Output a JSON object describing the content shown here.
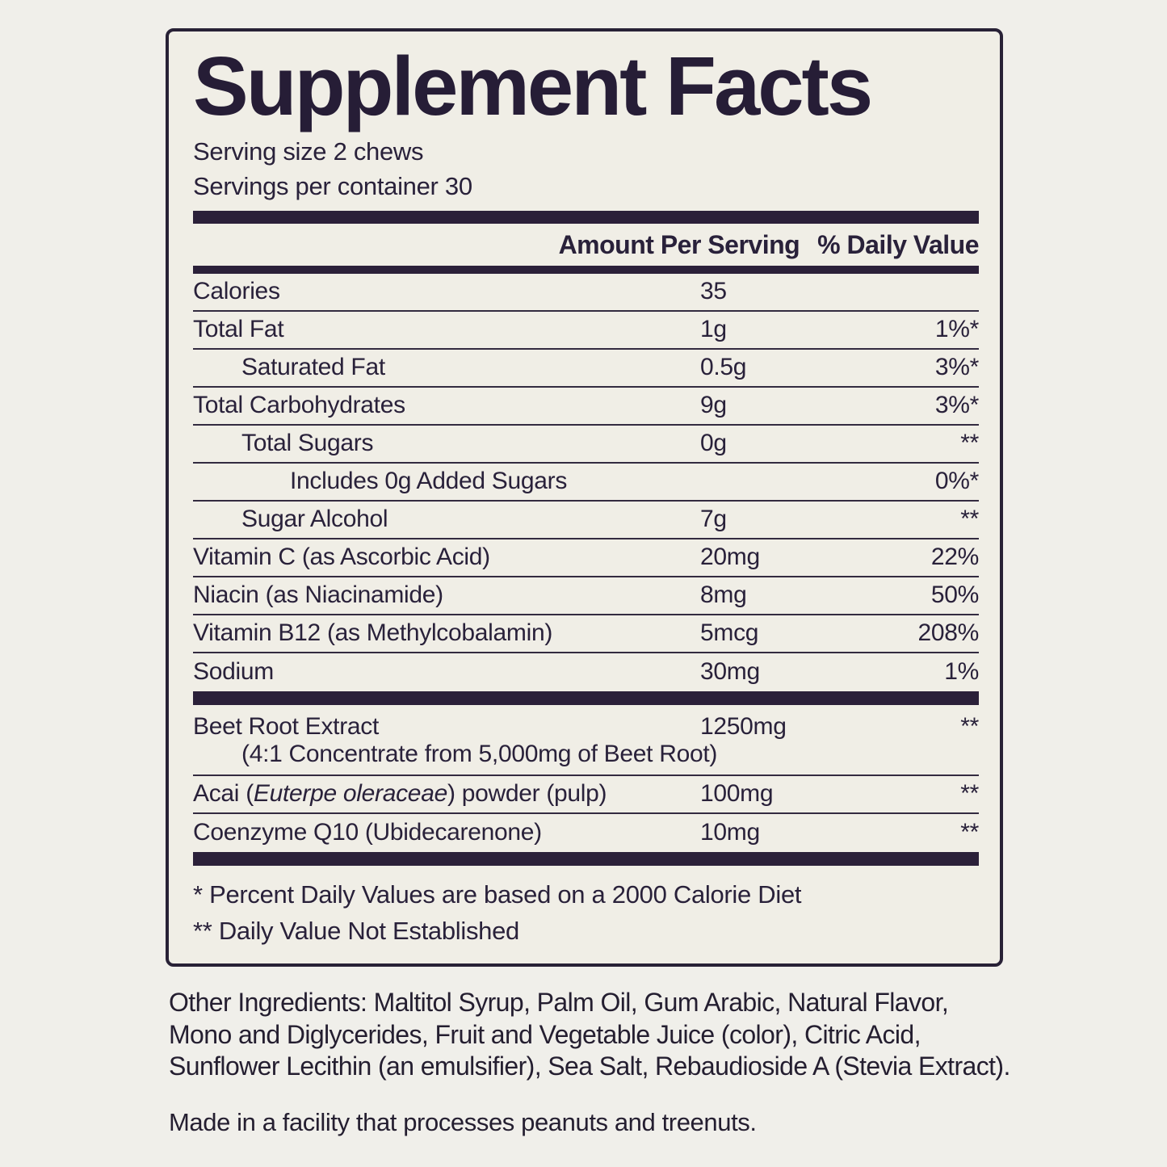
{
  "label": {
    "title": "Supplement Facts",
    "serving_size": "Serving size 2 chews",
    "servings_per_container": "Servings per container 30",
    "header": {
      "amount": "Amount Per Serving",
      "daily_value": "% Daily Value"
    },
    "rows": [
      {
        "type": "normal",
        "name": "Calories",
        "italic": "",
        "name_post": "",
        "amount": "35",
        "dv": "",
        "indent": 0,
        "divider": "thin"
      },
      {
        "type": "normal",
        "name": "Total Fat",
        "italic": "",
        "name_post": "",
        "amount": "1g",
        "dv": "1%*",
        "indent": 0,
        "divider": "thin"
      },
      {
        "type": "normal",
        "name": "Saturated Fat",
        "italic": "",
        "name_post": "",
        "amount": "0.5g",
        "dv": "3%*",
        "indent": 1,
        "divider": "thin"
      },
      {
        "type": "normal",
        "name": "Total Carbohydrates",
        "italic": "",
        "name_post": "",
        "amount": "9g",
        "dv": "3%*",
        "indent": 0,
        "divider": "thin"
      },
      {
        "type": "normal",
        "name": "Total Sugars",
        "italic": "",
        "name_post": "",
        "amount": "0g",
        "dv": "**",
        "indent": 1,
        "divider": "thin"
      },
      {
        "type": "normal",
        "name": "Includes 0g Added Sugars",
        "italic": "",
        "name_post": "",
        "amount": "",
        "dv": "0%*",
        "indent": 2,
        "divider": "thin"
      },
      {
        "type": "normal",
        "name": "Sugar Alcohol",
        "italic": "",
        "name_post": "",
        "amount": "7g",
        "dv": "**",
        "indent": 1,
        "divider": "thin"
      },
      {
        "type": "normal",
        "name": "Vitamin C (as Ascorbic Acid)",
        "italic": "",
        "name_post": "",
        "amount": "20mg",
        "dv": "22%",
        "indent": 0,
        "divider": "thin"
      },
      {
        "type": "normal",
        "name": "Niacin (as Niacinamide)",
        "italic": "",
        "name_post": "",
        "amount": "8mg",
        "dv": "50%",
        "indent": 0,
        "divider": "thin"
      },
      {
        "type": "normal",
        "name": "Vitamin B12 (as Methylcobalamin)",
        "italic": "",
        "name_post": "",
        "amount": "5mcg",
        "dv": "208%",
        "indent": 0,
        "divider": "thin"
      },
      {
        "type": "normal",
        "name": "Sodium",
        "italic": "",
        "name_post": "",
        "amount": "30mg",
        "dv": "1%",
        "indent": 0,
        "divider": "thick"
      },
      {
        "type": "beet",
        "name": "Beet Root Extract",
        "italic": "",
        "name_post": "",
        "amount": "1250mg",
        "dv": "**",
        "indent": 0,
        "divider": "none"
      },
      {
        "type": "subnote",
        "name": "(4:1 Concentrate from 5,000mg of Beet Root)",
        "italic": "",
        "name_post": "",
        "amount": "",
        "dv": "",
        "indent": 1,
        "divider": "thin"
      },
      {
        "type": "normal",
        "name": "Acai (",
        "italic": "Euterpe oleraceae",
        "name_post": ") powder (pulp)",
        "amount": "100mg",
        "dv": "**",
        "indent": 0,
        "divider": "thin"
      },
      {
        "type": "normal",
        "name": "Coenzyme Q10 (Ubidecarenone)",
        "italic": "",
        "name_post": "",
        "amount": "10mg",
        "dv": "**",
        "indent": 0,
        "divider": "thick"
      }
    ],
    "footnotes": [
      "* Percent Daily Values are based on a 2000 Calorie Diet",
      "** Daily Value Not Established"
    ]
  },
  "below_label": {
    "other_ingredients": "Other Ingredients: Maltitol Syrup, Palm Oil, Gum Arabic, Natural Flavor, Mono and Diglycerides, Fruit and Vegetable Juice (color), Citric Acid, Sunflower Lecithin (an emulsifier), Sea Salt, Rebaudioside A (Stevia Extract).",
    "facility_note": "Made in a facility that processes peanuts and treenuts."
  },
  "colors": {
    "ink": "#2b2039",
    "background": "#f0efea",
    "label_background": "#f0eee6"
  }
}
